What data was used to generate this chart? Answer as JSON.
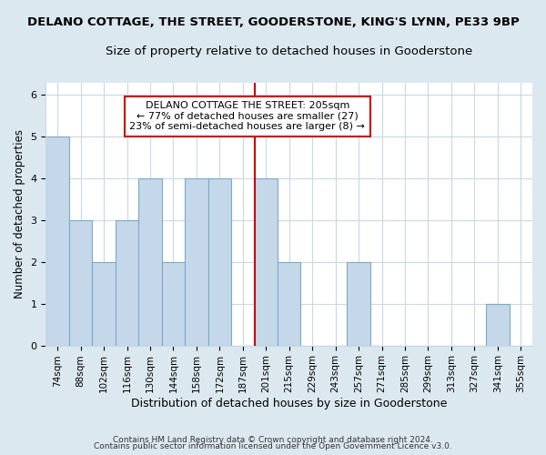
{
  "title": "DELANO COTTAGE, THE STREET, GOODERSTONE, KING'S LYNN, PE33 9BP",
  "subtitle": "Size of property relative to detached houses in Gooderstone",
  "xlabel": "Distribution of detached houses by size in Gooderstone",
  "ylabel": "Number of detached properties",
  "categories": [
    "74sqm",
    "88sqm",
    "102sqm",
    "116sqm",
    "130sqm",
    "144sqm",
    "158sqm",
    "172sqm",
    "187sqm",
    "201sqm",
    "215sqm",
    "229sqm",
    "243sqm",
    "257sqm",
    "271sqm",
    "285sqm",
    "299sqm",
    "313sqm",
    "327sqm",
    "341sqm",
    "355sqm"
  ],
  "values": [
    5,
    3,
    2,
    3,
    4,
    2,
    4,
    4,
    0,
    4,
    2,
    0,
    0,
    2,
    0,
    0,
    0,
    0,
    0,
    1,
    0
  ],
  "bar_color": "#c5d8ea",
  "bar_edge_color": "#7aaac8",
  "vline_x": 8.5,
  "vline_color": "#cc0000",
  "annotation_text": "DELANO COTTAGE THE STREET: 205sqm\n← 77% of detached houses are smaller (27)\n23% of semi-detached houses are larger (8) →",
  "annotation_box_color": "white",
  "annotation_box_edge": "#cc0000",
  "ylim": [
    0,
    6.3
  ],
  "yticks": [
    0,
    1,
    2,
    3,
    4,
    5,
    6
  ],
  "title_fontsize": 9.5,
  "subtitle_fontsize": 9.5,
  "xlabel_fontsize": 9,
  "ylabel_fontsize": 8.5,
  "footer_line1": "Contains HM Land Registry data © Crown copyright and database right 2024.",
  "footer_line2": "Contains public sector information licensed under the Open Government Licence v3.0.",
  "background_color": "#dce8f0",
  "plot_bg_color": "white",
  "grid_color": "#c8d8e8"
}
